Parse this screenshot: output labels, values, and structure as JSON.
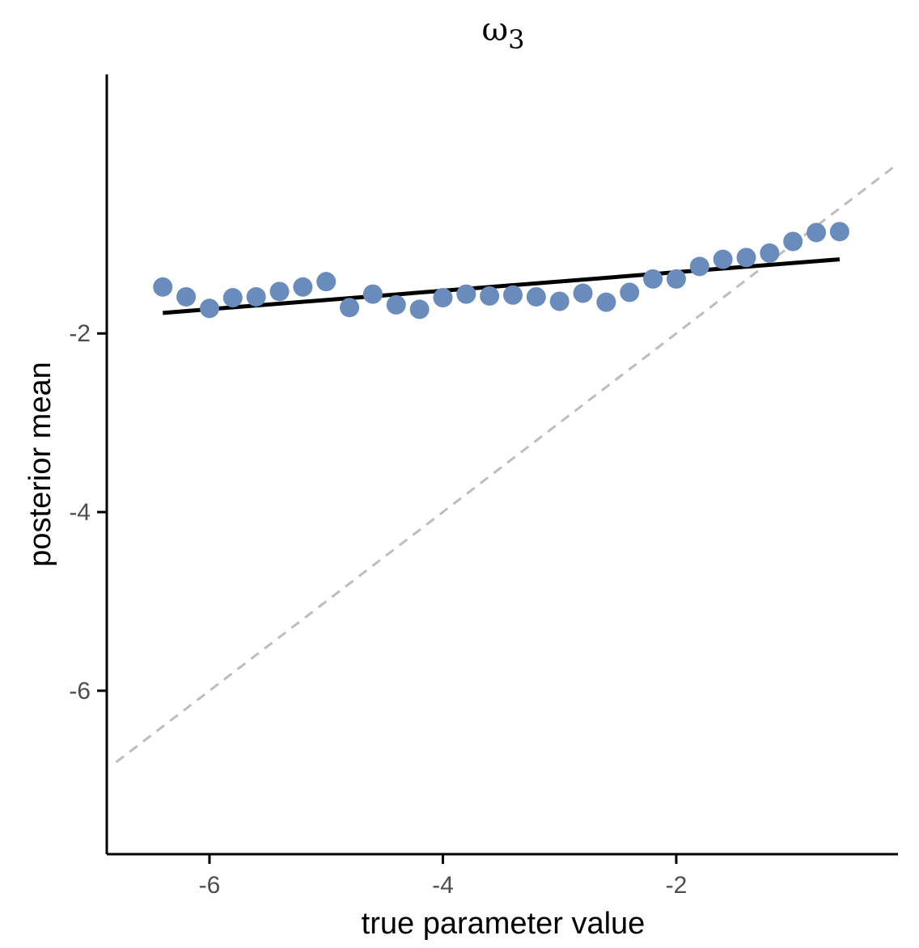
{
  "chart_data": {
    "type": "scatter",
    "title_symbol": "ω",
    "title_subscript": "3",
    "xlabel": "true parameter value",
    "ylabel": "posterior mean",
    "xlim": [
      -6.88,
      -0.1
    ],
    "ylim": [
      -7.83,
      0.9
    ],
    "x_ticks": [
      -6,
      -4,
      -2
    ],
    "x_tick_labels": [
      "-6",
      "-4",
      "-2"
    ],
    "y_ticks": [
      -2,
      -4,
      -6
    ],
    "y_tick_labels": [
      "-2",
      "-4",
      "-6"
    ],
    "grid": false,
    "point_color": "#6a8cbc",
    "fit_line_color": "#000000",
    "identity_line_color": "#bdbdbd",
    "points": {
      "x": [
        -6.4,
        -6.2,
        -6.0,
        -5.8,
        -5.6,
        -5.4,
        -5.2,
        -5.0,
        -4.8,
        -4.6,
        -4.4,
        -4.2,
        -4.0,
        -3.8,
        -3.6,
        -3.4,
        -3.2,
        -3.0,
        -2.8,
        -2.6,
        -2.4,
        -2.2,
        -2.0,
        -1.8,
        -1.6,
        -1.4,
        -1.2,
        -1.0,
        -0.8,
        -0.6
      ],
      "y": [
        -1.48,
        -1.59,
        -1.72,
        -1.6,
        -1.59,
        -1.53,
        -1.48,
        -1.42,
        -1.71,
        -1.56,
        -1.68,
        -1.73,
        -1.6,
        -1.56,
        -1.58,
        -1.57,
        -1.59,
        -1.64,
        -1.55,
        -1.65,
        -1.54,
        -1.39,
        -1.39,
        -1.25,
        -1.17,
        -1.15,
        -1.1,
        -0.97,
        -0.87,
        -0.86
      ]
    },
    "fit_line": {
      "x": [
        -6.4,
        -0.6
      ],
      "y": [
        -1.77,
        -1.17
      ]
    },
    "identity_line": {
      "x": [
        -6.8,
        -0.1
      ],
      "y": [
        -6.8,
        -0.1
      ]
    }
  }
}
